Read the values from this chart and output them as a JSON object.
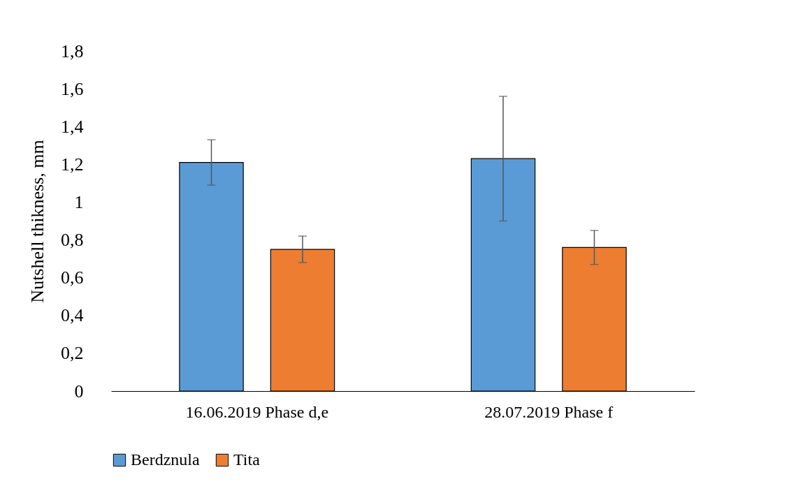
{
  "chart_data": {
    "type": "bar",
    "ylabel": "Nutshell thikness, mm",
    "categories": [
      "16.06.2019   Phase d,e",
      "28.07.2019  Phase f"
    ],
    "series": [
      {
        "name": "Berdznula",
        "color": "#5b9bd5",
        "values": [
          1.21,
          1.23
        ],
        "errors": [
          [
            1.09,
            1.33
          ],
          [
            0.9,
            1.56
          ]
        ]
      },
      {
        "name": "Tita",
        "color": "#ed7d31",
        "values": [
          0.75,
          0.76
        ],
        "errors": [
          [
            0.68,
            0.82
          ],
          [
            0.67,
            0.85
          ]
        ]
      }
    ],
    "ylim": [
      0,
      1.8
    ],
    "yticks": [
      0,
      {
        "value": 0.2,
        "label": "0,2"
      },
      {
        "value": 0.4,
        "label": "0,4"
      },
      {
        "value": 0.6,
        "label": "0,6"
      },
      {
        "value": 0.8,
        "label": "0,8"
      },
      1,
      {
        "value": 1.2,
        "label": "1,2"
      },
      {
        "value": 1.4,
        "label": "1,4"
      },
      {
        "value": 1.6,
        "label": "1,6"
      },
      {
        "value": 1.8,
        "label": "1,8"
      }
    ],
    "grid": false,
    "legend": "bottom"
  }
}
